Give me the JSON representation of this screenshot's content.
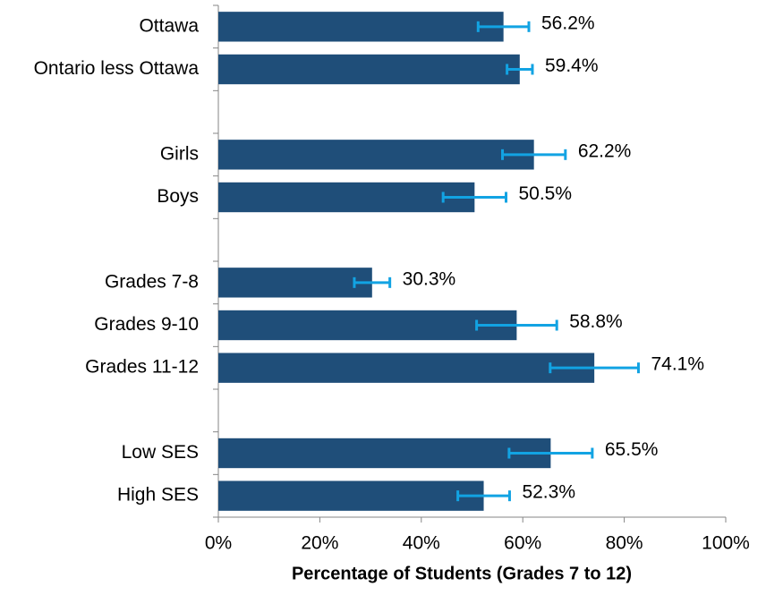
{
  "chart_data": {
    "type": "hbar",
    "xlabel": "Percentage of Students (Grades 7 to 12)",
    "categories": [
      "Ottawa",
      "Ontario less Ottawa",
      null,
      "Girls",
      "Boys",
      null,
      "Grades 7-8",
      "Grades 9-10",
      "Grades 11-12",
      null,
      "Low SES",
      "High SES"
    ],
    "values": [
      56.2,
      59.4,
      null,
      62.2,
      50.5,
      null,
      30.3,
      58.8,
      74.1,
      null,
      65.5,
      52.3
    ],
    "value_labels": [
      "56.2%",
      "59.4%",
      null,
      "62.2%",
      "50.5%",
      null,
      "30.3%",
      "58.8%",
      "74.1%",
      null,
      "65.5%",
      "52.3%"
    ],
    "errors": [
      5,
      2.5,
      null,
      6.2,
      6.2,
      null,
      3.5,
      7.9,
      8.7,
      null,
      8.2,
      5.1
    ],
    "color": "#1f4e79",
    "error_color": "#12a3e3",
    "xlim": [
      0,
      100
    ],
    "xticks": [
      {
        "value": 0,
        "label": "0%"
      },
      {
        "value": 20,
        "label": "20%"
      },
      {
        "value": 40,
        "label": "40%"
      },
      {
        "value": 60,
        "label": "60%"
      },
      {
        "value": 80,
        "label": "80%"
      },
      {
        "value": 100,
        "label": "100%"
      }
    ]
  }
}
